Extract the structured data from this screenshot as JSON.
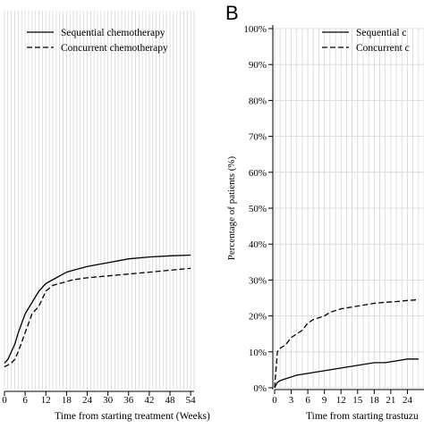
{
  "chart_data": [
    {
      "type": "line",
      "panel_label": "",
      "xlabel": "Time from starting treatment (Weeks)",
      "ylabel": "",
      "xlim": [
        0,
        55
      ],
      "ylim": [
        0,
        100
      ],
      "x_ticks": [
        0,
        6,
        12,
        18,
        24,
        30,
        36,
        42,
        48,
        54
      ],
      "x_tick_labels": [
        "0",
        "6",
        "12",
        "18",
        "24",
        "30",
        "36",
        "42",
        "48",
        "54"
      ],
      "grid": true,
      "legend_position": "top-left",
      "series": [
        {
          "name": "Sequential chemotherapy",
          "style": "solid",
          "x": [
            0,
            1,
            2,
            3,
            4,
            6,
            8,
            10,
            12,
            14,
            16,
            18,
            20,
            24,
            30,
            36,
            42,
            48,
            54
          ],
          "y": [
            7,
            8,
            10,
            12,
            15,
            20,
            23,
            26,
            28,
            29,
            30,
            31,
            31.5,
            32.5,
            33.5,
            34.5,
            35,
            35.3,
            35.5
          ]
        },
        {
          "name": "Concurrent chemotherapy",
          "style": "dashed",
          "x": [
            0,
            1,
            2,
            3,
            4,
            6,
            8,
            10,
            11,
            12,
            14,
            16,
            18,
            20,
            24,
            30,
            36,
            42,
            48,
            54
          ],
          "y": [
            6,
            6.5,
            7,
            8,
            10,
            15,
            20,
            22,
            24,
            26,
            27.5,
            28,
            28.5,
            29,
            29.5,
            30,
            30.5,
            31,
            31.5,
            32
          ]
        }
      ]
    },
    {
      "type": "line",
      "panel_label": "B",
      "xlabel": "Time from starting trastuzu",
      "ylabel": "Percentage of patients (%)",
      "xlim": [
        0,
        27
      ],
      "ylim": [
        0,
        100
      ],
      "x_ticks": [
        0,
        3,
        6,
        9,
        12,
        15,
        18,
        21,
        24
      ],
      "x_tick_labels": [
        "0",
        "3",
        "6",
        "9",
        "12",
        "15",
        "18",
        "21",
        "24"
      ],
      "y_ticks": [
        0,
        10,
        20,
        30,
        40,
        50,
        60,
        70,
        80,
        90,
        100
      ],
      "y_tick_labels": [
        "0%",
        "10%",
        "20%",
        "30%",
        "40%",
        "50%",
        "60%",
        "70%",
        "80%",
        "90%",
        "100%"
      ],
      "grid": true,
      "legend_position": "top-right",
      "series": [
        {
          "name": "Sequential c",
          "style": "solid",
          "x": [
            0,
            0.5,
            1,
            2,
            3,
            4,
            6,
            8,
            10,
            12,
            14,
            16,
            18,
            20,
            22,
            24,
            26
          ],
          "y": [
            0,
            1.5,
            2,
            2.5,
            3,
            3.5,
            4,
            4.5,
            5,
            5.5,
            6,
            6.5,
            7,
            7,
            7.5,
            8,
            8
          ]
        },
        {
          "name": "Concurrent c",
          "style": "dashed",
          "x": [
            0,
            0.5,
            1,
            2,
            3,
            4,
            5,
            6,
            7,
            8,
            9,
            10,
            12,
            14,
            16,
            18,
            20,
            22,
            24,
            26
          ],
          "y": [
            0,
            10,
            11,
            12,
            14,
            15,
            16,
            18,
            19,
            19.5,
            20,
            21,
            22,
            22.5,
            23,
            23.5,
            23.8,
            24,
            24.3,
            24.5
          ]
        }
      ]
    }
  ]
}
